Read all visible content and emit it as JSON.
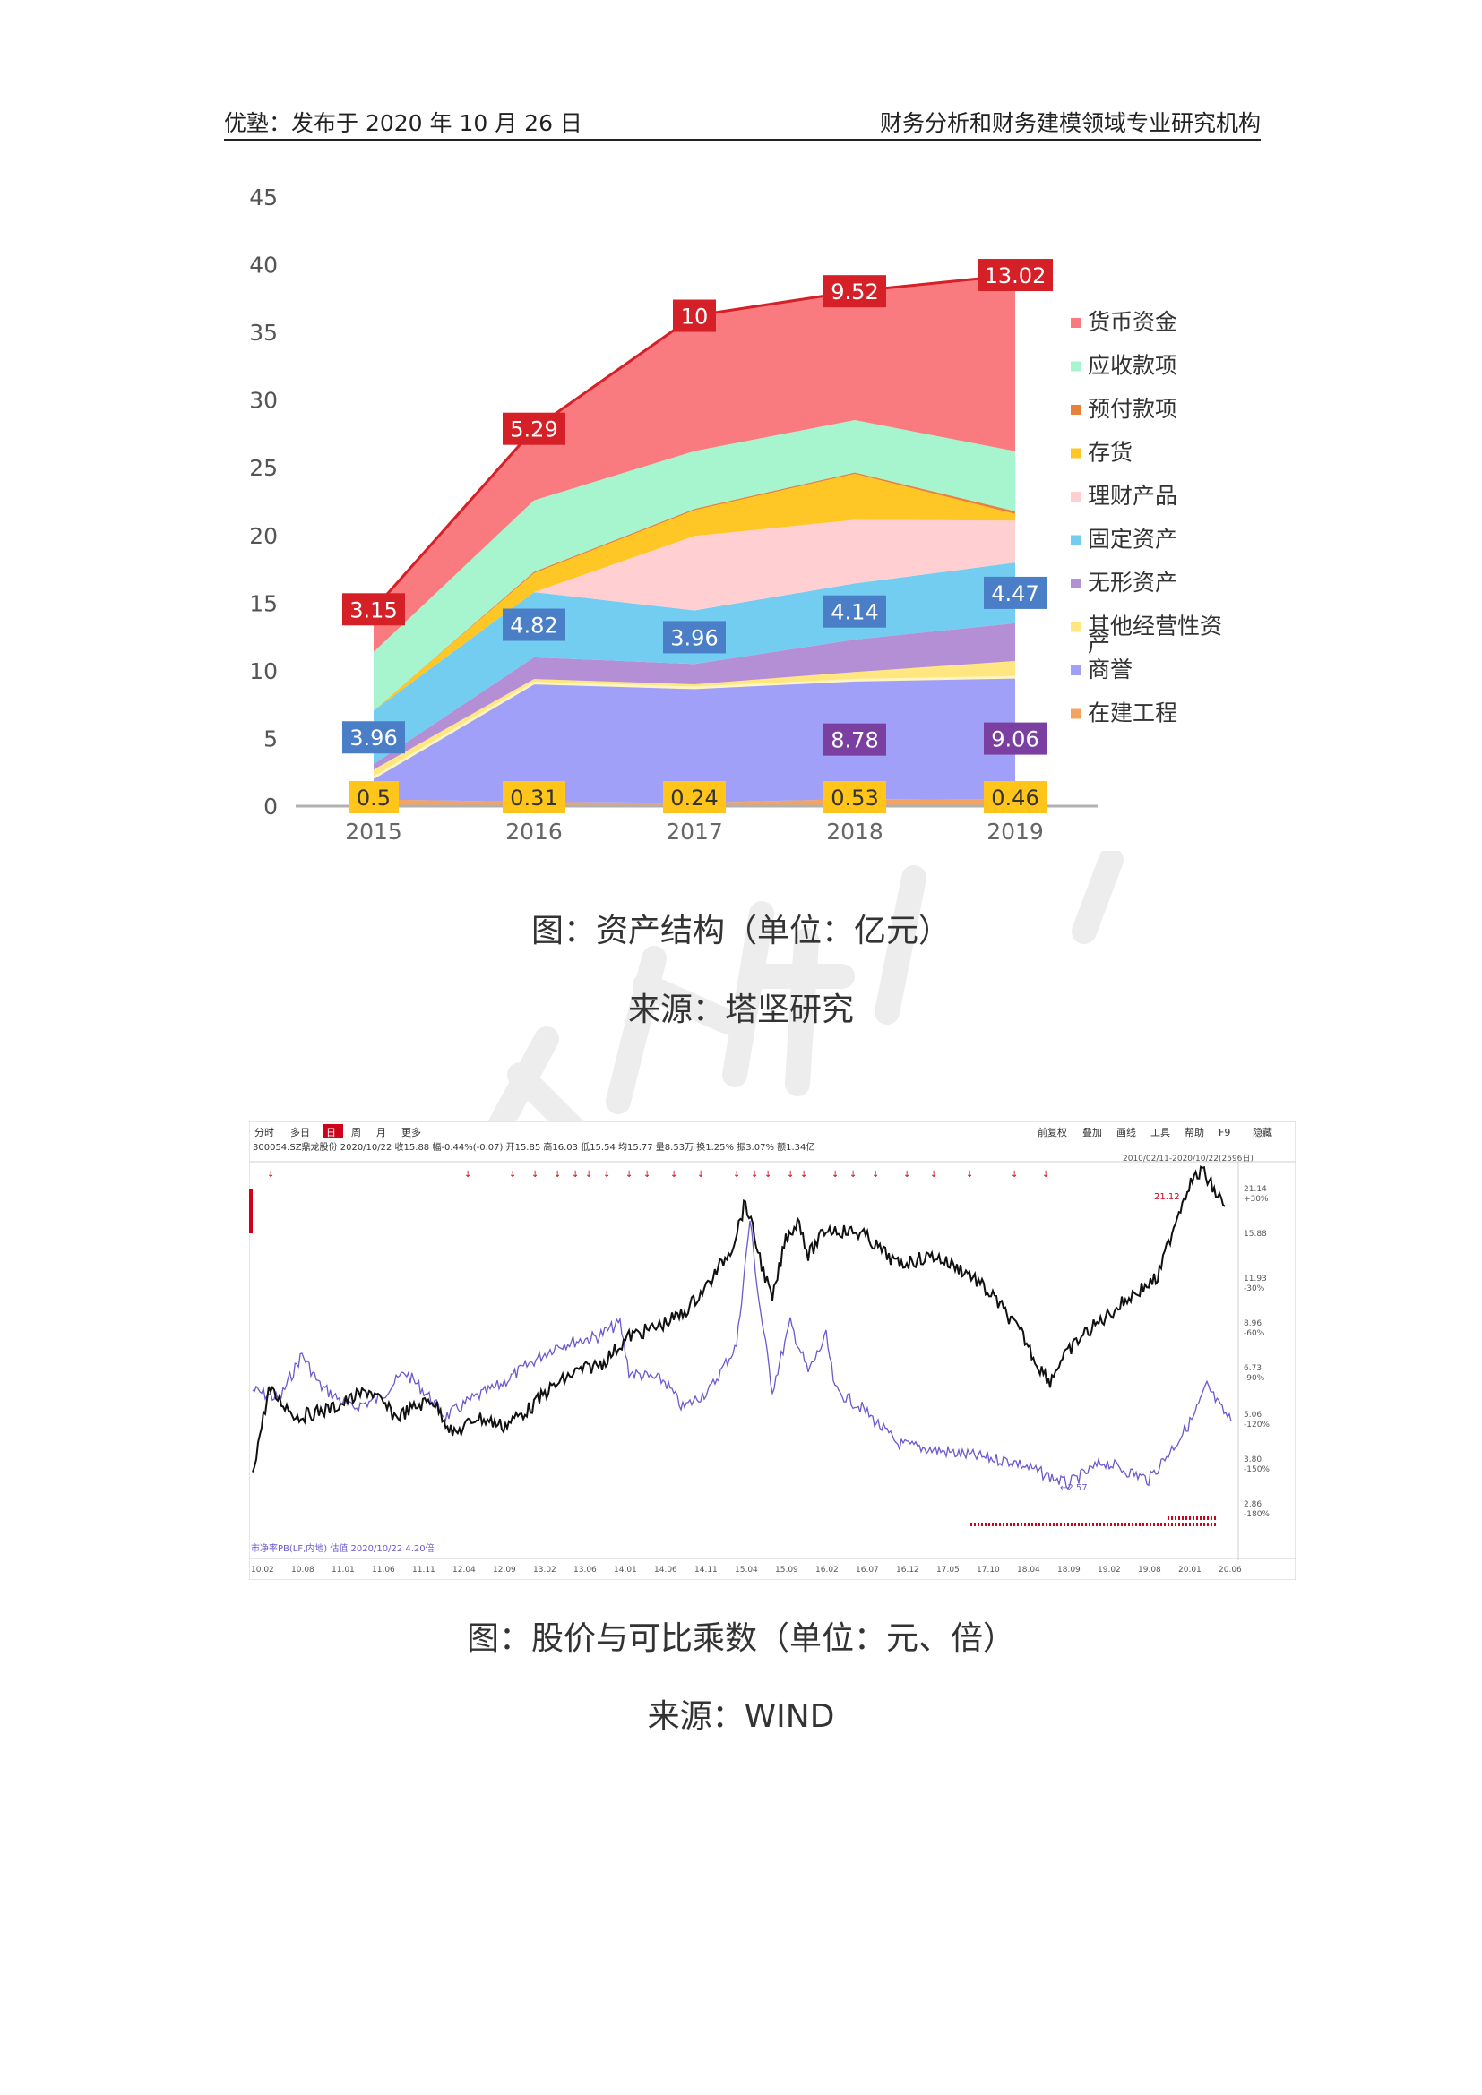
{
  "header": {
    "left": "优塾：发布于 2020 年 10 月 26 日",
    "right": "财务分析和财务建模领域专业研究机构"
  },
  "figure1": {
    "caption": "图：资产结构（单位：亿元）",
    "source": "来源：塔坚研究"
  },
  "figure2": {
    "caption": "图：股价与可比乘数（单位：元、倍）",
    "source": "来源：WIND",
    "toolbar_left": [
      "分时",
      "多日",
      "日",
      "周",
      "月",
      "更多"
    ],
    "toolbar_right": [
      "前复权",
      "叠加",
      "画线",
      "工具",
      "帮助",
      "F9",
      "隐藏"
    ],
    "info_line": "300054.SZ鼎龙股份  2020/10/22  收15.88  幅-0.44%(-0.07)  开15.85  高16.03  低15.54  均15.77  量8.53万  换1.25%  振3.07%  额1.34亿",
    "range_label": "2010/02/11-2020/10/22(2596日)",
    "footer_label": "市净率PB(LF,内地) 估值 2020/10/22 4.20倍",
    "right_axis_labels": [
      {
        "top": "21.14",
        "bottom": "+30%"
      },
      {
        "top": "15.88",
        "bottom": ""
      },
      {
        "top": "11.93",
        "bottom": "-30%"
      },
      {
        "top": "8.96",
        "bottom": "-60%"
      },
      {
        "top": "6.73",
        "bottom": "-90%"
      },
      {
        "top": "5.06",
        "bottom": "-120%"
      },
      {
        "top": "3.80",
        "bottom": "-150%"
      },
      {
        "top": "2.86",
        "bottom": "-180%"
      }
    ],
    "x_labels": [
      "10.02",
      "10.08",
      "11.01",
      "11.06",
      "11.11",
      "12.04",
      "12.09",
      "13.02",
      "13.06",
      "14.01",
      "14.06",
      "14.11",
      "15.04",
      "15.09",
      "16.02",
      "16.07",
      "16.12",
      "17.05",
      "17.10",
      "18.04",
      "18.09",
      "19.02",
      "19.08",
      "20.01",
      "20.06"
    ],
    "annotations": {
      "high_label": "21.12",
      "low_label": "2.57"
    },
    "colors": {
      "price": "#111111",
      "pb": "#6a5acd"
    }
  },
  "chart_data": {
    "type": "area",
    "title": "",
    "xlabel": "",
    "ylabel": "",
    "ylim": [
      0,
      45
    ],
    "y_ticks": [
      0,
      5,
      10,
      15,
      20,
      25,
      30,
      35,
      40,
      45
    ],
    "categories": [
      "2015",
      "2016",
      "2017",
      "2018",
      "2019"
    ],
    "stacking": "stacked",
    "legend_position": "right",
    "series": [
      {
        "name": "在建工程",
        "color": "#f4a460",
        "values": [
          0.5,
          0.31,
          0.24,
          0.53,
          0.46
        ]
      },
      {
        "name": "商誉",
        "color": "#a0a0f8",
        "values": [
          1.6,
          8.78,
          8.5,
          8.78,
          9.06
        ]
      },
      {
        "name": "其他经营性资产",
        "color": "#ffe680",
        "values": [
          0.6,
          0.3,
          0.26,
          0.6,
          1.2
        ]
      },
      {
        "name": "无形资产",
        "color": "#b48fd6",
        "values": [
          0.4,
          1.6,
          1.5,
          2.4,
          2.8
        ]
      },
      {
        "name": "固定资产",
        "color": "#72cdf0",
        "values": [
          3.96,
          4.82,
          3.96,
          4.14,
          4.47
        ]
      },
      {
        "name": "理财产品",
        "color": "#ffcfd2",
        "values": [
          0.0,
          0.0,
          5.5,
          4.7,
          3.1
        ]
      },
      {
        "name": "存货",
        "color": "#ffc726",
        "values": [
          0.0,
          1.4,
          1.9,
          3.4,
          0.5
        ]
      },
      {
        "name": "预付款项",
        "color": "#e8823a",
        "values": [
          0.0,
          0.1,
          0.1,
          0.1,
          0.2
        ]
      },
      {
        "name": "应收款项",
        "color": "#a6f5cf",
        "values": [
          4.33,
          5.28,
          4.27,
          3.87,
          4.43
        ]
      },
      {
        "name": "货币资金",
        "color": "#fa7b7f",
        "values": [
          3.15,
          5.29,
          10,
          9.52,
          13.02
        ]
      }
    ],
    "data_labels": [
      {
        "series": "货币资金",
        "values": [
          "3.15",
          "5.29",
          "10",
          "9.52",
          "13.02"
        ],
        "bg": "#d62027"
      },
      {
        "series": "固定资产",
        "values": [
          "3.96",
          "4.82",
          "3.96",
          "4.14",
          "4.47"
        ],
        "bg": "#4a7ec7"
      },
      {
        "series": "商誉",
        "values": [
          "",
          "",
          "",
          "8.78",
          "9.06"
        ],
        "bg": "#7b3fa1"
      },
      {
        "series": "在建工程",
        "values": [
          "0.5",
          "0.31",
          "0.24",
          "0.53",
          "0.46"
        ],
        "bg": "#ffc51b"
      }
    ]
  }
}
